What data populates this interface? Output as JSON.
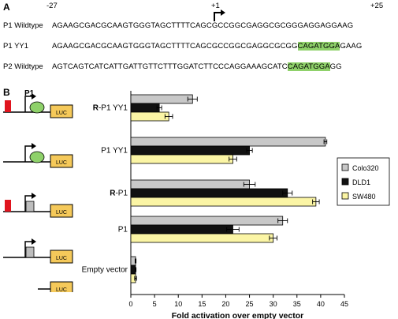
{
  "panel_a": {
    "letter": "A",
    "pos_left": "-27",
    "pos_mid": "+1",
    "pos_right": "+25",
    "rows": [
      {
        "label": "P1 Wildtype",
        "seq": "AGAAGCGACGCAAGTGGGTAGCTTTTCAGCGCCGGCGAGGCGCGGGAGGAGGAAG"
      },
      {
        "label": "P1 YY1",
        "seq_pre": "AGAAGCGACGCAAGTGGGTAGCTTTTCAGCGCCGGCGAGGCGCGG",
        "seq_hl": "CAGATGGA",
        "seq_post": "GAAG"
      },
      {
        "label": "P2 Wildtype",
        "seq_pre": "AGTCAGTCATCATTGATTGTTCTTTGGATCTTCCCAGGAAAGCATC",
        "seq_hl": "CAGATGGA",
        "seq_post": "GG"
      }
    ],
    "highlight_color": "#8fd16a"
  },
  "panel_b": {
    "letter": "B",
    "p1_label": "P1",
    "luc_label": "LUC",
    "colors": {
      "red_element": "#e0141e",
      "yy1_site": "#8ed16a",
      "promoter_box": "#bdbdbd",
      "luc_box": "#f5c95a"
    }
  },
  "chart_data": {
    "type": "bar",
    "orientation": "horizontal",
    "categories": [
      "R-P1 YY1",
      "P1 YY1",
      "R-P1",
      "P1",
      "Empty vector"
    ],
    "category_bold_prefix": [
      "R",
      "",
      "R",
      "",
      ""
    ],
    "category_rest": [
      "-P1 YY1",
      "P1 YY1",
      "-P1",
      "P1",
      "Empty vector"
    ],
    "series": [
      {
        "name": "Colo320",
        "color": "#c8c8c8",
        "values": [
          13,
          41,
          25,
          32,
          1
        ],
        "errors": [
          1.0,
          0.3,
          1.2,
          1.0,
          0.1
        ]
      },
      {
        "name": "DLD1",
        "color": "#111111",
        "values": [
          6,
          25,
          33,
          21.5,
          1
        ],
        "errors": [
          0.5,
          0.6,
          1.0,
          1.3,
          0.1
        ]
      },
      {
        "name": "SW480",
        "color": "#fbf5a5",
        "values": [
          8,
          21.5,
          39,
          30,
          1
        ],
        "errors": [
          0.8,
          0.8,
          0.7,
          0.8,
          0.2
        ]
      }
    ],
    "xlabel": "Fold activation over empty vector",
    "xlim": [
      0,
      45
    ],
    "xticks": [
      0,
      5,
      10,
      15,
      20,
      25,
      30,
      35,
      40,
      45
    ],
    "legend_position": "right"
  }
}
